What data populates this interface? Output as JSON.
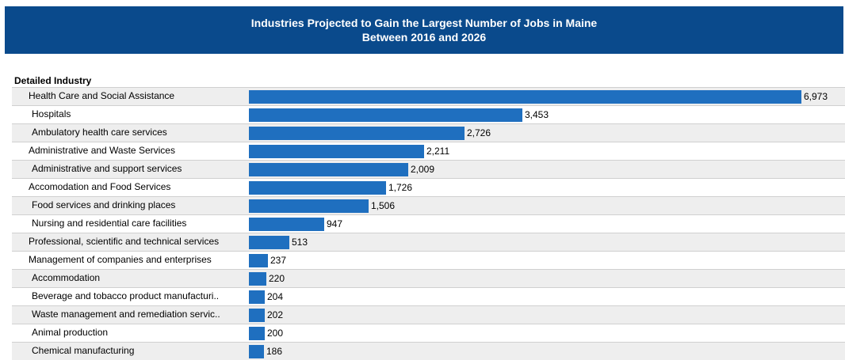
{
  "header": {
    "title_line1": "Industries Projected to Gain the Largest Number of Jobs in Maine",
    "title_line2": "Between 2016 and 2026"
  },
  "column_header": "Detailed Industry",
  "colors": {
    "header_bg": "#0a4a8c",
    "bar": "#1f6fbf",
    "row_shade": "#eeeeee"
  },
  "chart_data": {
    "type": "bar",
    "orientation": "horizontal",
    "title": "Industries Projected to Gain the Largest Number of Jobs in Maine Between 2016 and 2026",
    "xlabel": "",
    "ylabel": "Detailed Industry",
    "xlim": [
      0,
      6973
    ],
    "categories": [
      "Health Care and Social Assistance",
      "Hospitals",
      "Ambulatory health care services",
      "Administrative and Waste Services",
      "Administrative and support services",
      "Accomodation and Food Services",
      "Food services and drinking places",
      "Nursing and residential care facilities",
      "Professional, scientific and technical services",
      "Management of companies and enterprises",
      "Accommodation",
      "Beverage and tobacco product manufacturi..",
      "Waste management and remediation servic..",
      "Animal production",
      "Chemical manufacturing"
    ],
    "levels": [
      "top",
      "sub",
      "sub",
      "top",
      "sub",
      "top",
      "sub",
      "sub",
      "top",
      "top",
      "sub",
      "sub",
      "sub",
      "sub",
      "sub"
    ],
    "values": [
      6973,
      3453,
      2726,
      2211,
      2009,
      1726,
      1506,
      947,
      513,
      237,
      220,
      204,
      202,
      200,
      186
    ],
    "value_labels": [
      "6,973",
      "3,453",
      "2,726",
      "2,211",
      "2,009",
      "1,726",
      "1,506",
      "947",
      "513",
      "237",
      "220",
      "204",
      "202",
      "200",
      "186"
    ]
  }
}
